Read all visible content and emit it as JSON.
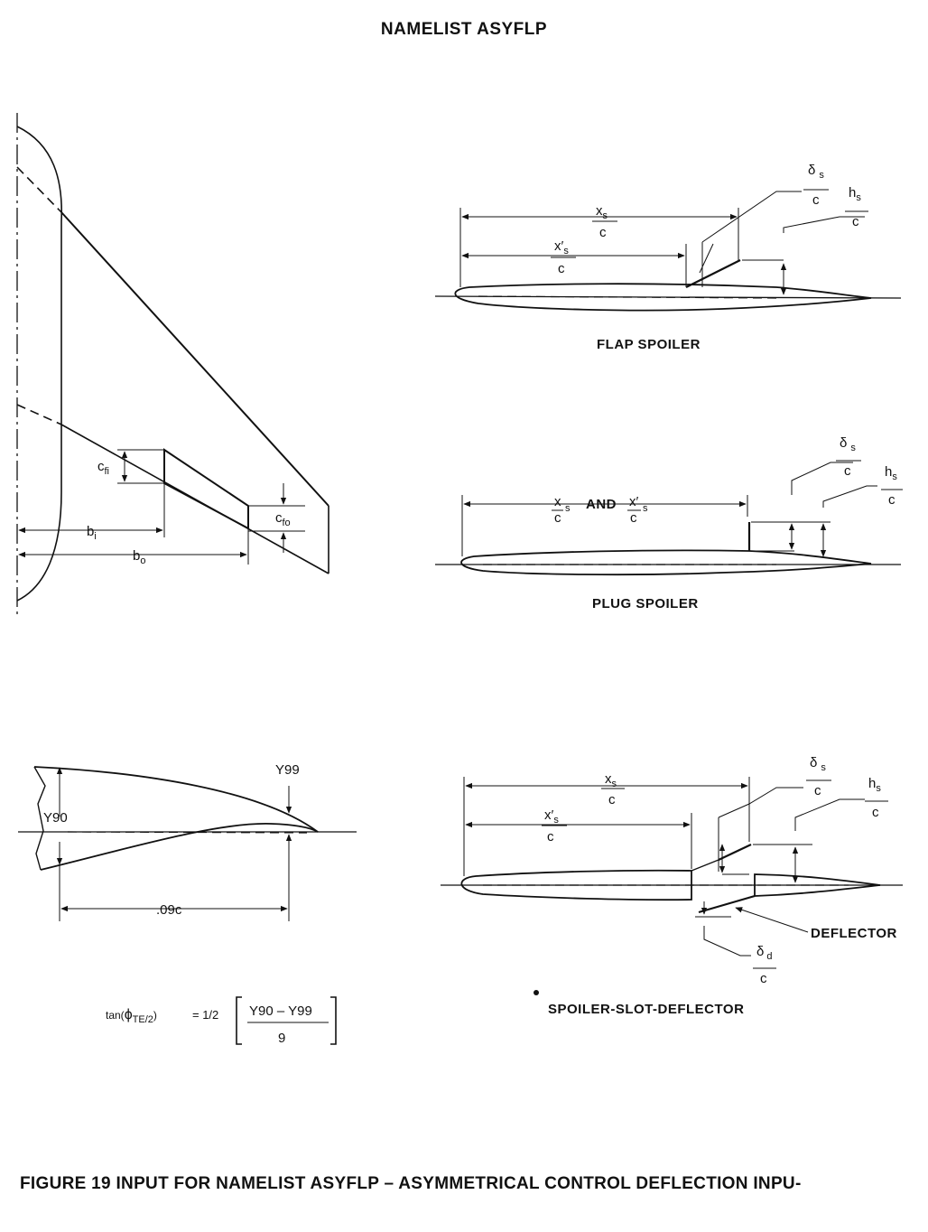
{
  "title": "NAMELIST ASYFLP",
  "caption": "FIGURE 19  INPUT FOR NAMELIST ASYFLP – ASYMMETRICAL CONTROL DEFLECTION INPU‐",
  "planform": {
    "cfi_label": "c",
    "cfi_sub": "fi",
    "cfo_label": "c",
    "cfo_sub": "fo",
    "bi_label": "b",
    "bi_sub": "i",
    "bo_label": "b",
    "bo_sub": "o"
  },
  "flap_spoiler": {
    "name": "FLAP SPOILER",
    "xs": "x",
    "xs_sub": "s",
    "xps": "x′",
    "xps_sub": "s",
    "ds": "δ",
    "ds_sub": "s",
    "hs": "h",
    "hs_sub": "s",
    "c": "c"
  },
  "plug_spoiler": {
    "name": "PLUG SPOILER",
    "and_label": "AND",
    "xs": "x",
    "xs_sub": "s",
    "xps": "x′",
    "xps_sub": "s",
    "ds": "δ",
    "ds_sub": "s",
    "hs": "h",
    "hs_sub": "s",
    "c": "c"
  },
  "trailing_edge": {
    "y99": "Y99",
    "y90": "Y90",
    "chord_label": ".09c",
    "formula_lhs": "tan(",
    "formula_phi": "ϕ",
    "formula_sub": "TE/2",
    "formula_close": ")",
    "formula_eq": "= 1/2",
    "formula_num": "Y90 – Y99",
    "formula_den": "9"
  },
  "ssd": {
    "name": "SPOILER-SLOT-DEFLECTOR",
    "deflector_label": "DEFLECTOR",
    "xs": "x",
    "xs_sub": "s",
    "xps": "x′",
    "xps_sub": "s",
    "ds": "δ",
    "ds_sub": "s",
    "hs": "h",
    "hs_sub": "s",
    "dd": "δ",
    "dd_sub": "d",
    "c": "c"
  }
}
